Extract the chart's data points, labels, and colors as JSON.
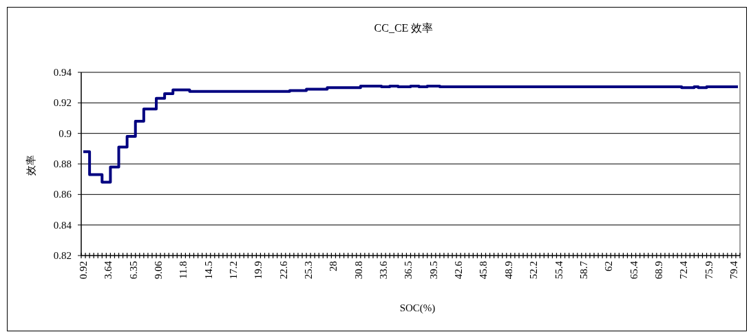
{
  "chart_data": {
    "type": "step",
    "title": "CC_CE 效率",
    "xlabel": "SOC(%)",
    "ylabel": "效率",
    "categories": [
      "0.92",
      null,
      null,
      null,
      null,
      null,
      "3.64",
      null,
      null,
      null,
      null,
      null,
      "6.35",
      null,
      null,
      null,
      null,
      null,
      "9.06",
      null,
      null,
      null,
      null,
      null,
      "11.8",
      null,
      null,
      null,
      null,
      null,
      "14.5",
      null,
      null,
      null,
      null,
      null,
      "17.2",
      null,
      null,
      null,
      null,
      null,
      "19.9",
      null,
      null,
      null,
      null,
      null,
      "22.6",
      null,
      null,
      null,
      null,
      null,
      "25.3",
      null,
      null,
      null,
      null,
      null,
      "28",
      null,
      null,
      null,
      null,
      null,
      "30.8",
      null,
      null,
      null,
      null,
      null,
      "33.6",
      null,
      null,
      null,
      null,
      null,
      "36.5",
      null,
      null,
      null,
      null,
      null,
      "39.5",
      null,
      null,
      null,
      null,
      null,
      "42.6",
      null,
      null,
      null,
      null,
      null,
      "45.8",
      null,
      null,
      null,
      null,
      null,
      "48.9",
      null,
      null,
      null,
      null,
      null,
      "52.2",
      null,
      null,
      null,
      null,
      null,
      "55.4",
      null,
      null,
      null,
      null,
      null,
      "58.7",
      null,
      null,
      null,
      null,
      null,
      "62",
      null,
      null,
      null,
      null,
      null,
      "65.4",
      null,
      null,
      null,
      null,
      null,
      "68.9",
      null,
      null,
      null,
      null,
      null,
      "72.4",
      null,
      null,
      null,
      null,
      null,
      "75.9",
      null,
      null,
      null,
      null,
      null,
      "79.4",
      null
    ],
    "series": [
      {
        "color": "#000080",
        "values": [
          0.888,
          0.888,
          0.873,
          0.873,
          0.873,
          0.868,
          0.868,
          0.878,
          0.878,
          0.891,
          0.891,
          0.898,
          0.898,
          0.908,
          0.908,
          0.916,
          0.916,
          0.916,
          0.923,
          0.923,
          0.926,
          0.926,
          0.9285,
          0.9285,
          0.9285,
          0.9285,
          0.9275,
          0.9275,
          0.9275,
          0.9275,
          0.9275,
          0.9275,
          0.9275,
          0.9275,
          0.9275,
          0.9275,
          0.9275,
          0.9275,
          0.9275,
          0.9275,
          0.9275,
          0.9275,
          0.9275,
          0.9275,
          0.9275,
          0.9275,
          0.9275,
          0.9275,
          0.9275,
          0.9275,
          0.928,
          0.928,
          0.928,
          0.928,
          0.929,
          0.929,
          0.929,
          0.929,
          0.929,
          0.93,
          0.93,
          0.93,
          0.93,
          0.93,
          0.93,
          0.93,
          0.93,
          0.931,
          0.931,
          0.931,
          0.931,
          0.931,
          0.9305,
          0.9305,
          0.931,
          0.931,
          0.9305,
          0.9305,
          0.9305,
          0.931,
          0.931,
          0.9305,
          0.9305,
          0.931,
          0.931,
          0.931,
          0.9305,
          0.9305,
          0.9305,
          0.9305,
          0.9305,
          0.9305,
          0.9305,
          0.9305,
          0.9305,
          0.9305,
          0.9305,
          0.9305,
          0.9305,
          0.9305,
          0.9305,
          0.9305,
          0.9305,
          0.9305,
          0.9305,
          0.9305,
          0.9305,
          0.9305,
          0.9305,
          0.9305,
          0.9305,
          0.9305,
          0.9305,
          0.9305,
          0.9305,
          0.9305,
          0.9305,
          0.9305,
          0.9305,
          0.9305,
          0.9305,
          0.9305,
          0.9305,
          0.9305,
          0.9305,
          0.9305,
          0.9305,
          0.9305,
          0.9305,
          0.9305,
          0.9305,
          0.9305,
          0.9305,
          0.9305,
          0.9305,
          0.9305,
          0.9305,
          0.9305,
          0.9305,
          0.9305,
          0.9305,
          0.9305,
          0.9305,
          0.9305,
          0.93,
          0.93,
          0.93,
          0.9305,
          0.93,
          0.93,
          0.9305,
          0.9305,
          0.9305,
          0.9305,
          0.9305,
          0.9305,
          0.9305,
          0.9305
        ]
      }
    ],
    "ylim": [
      0.82,
      0.94
    ],
    "yticks": [
      0.82,
      0.84,
      0.86,
      0.88,
      0.9,
      0.92,
      0.94
    ],
    "grid": "y"
  }
}
